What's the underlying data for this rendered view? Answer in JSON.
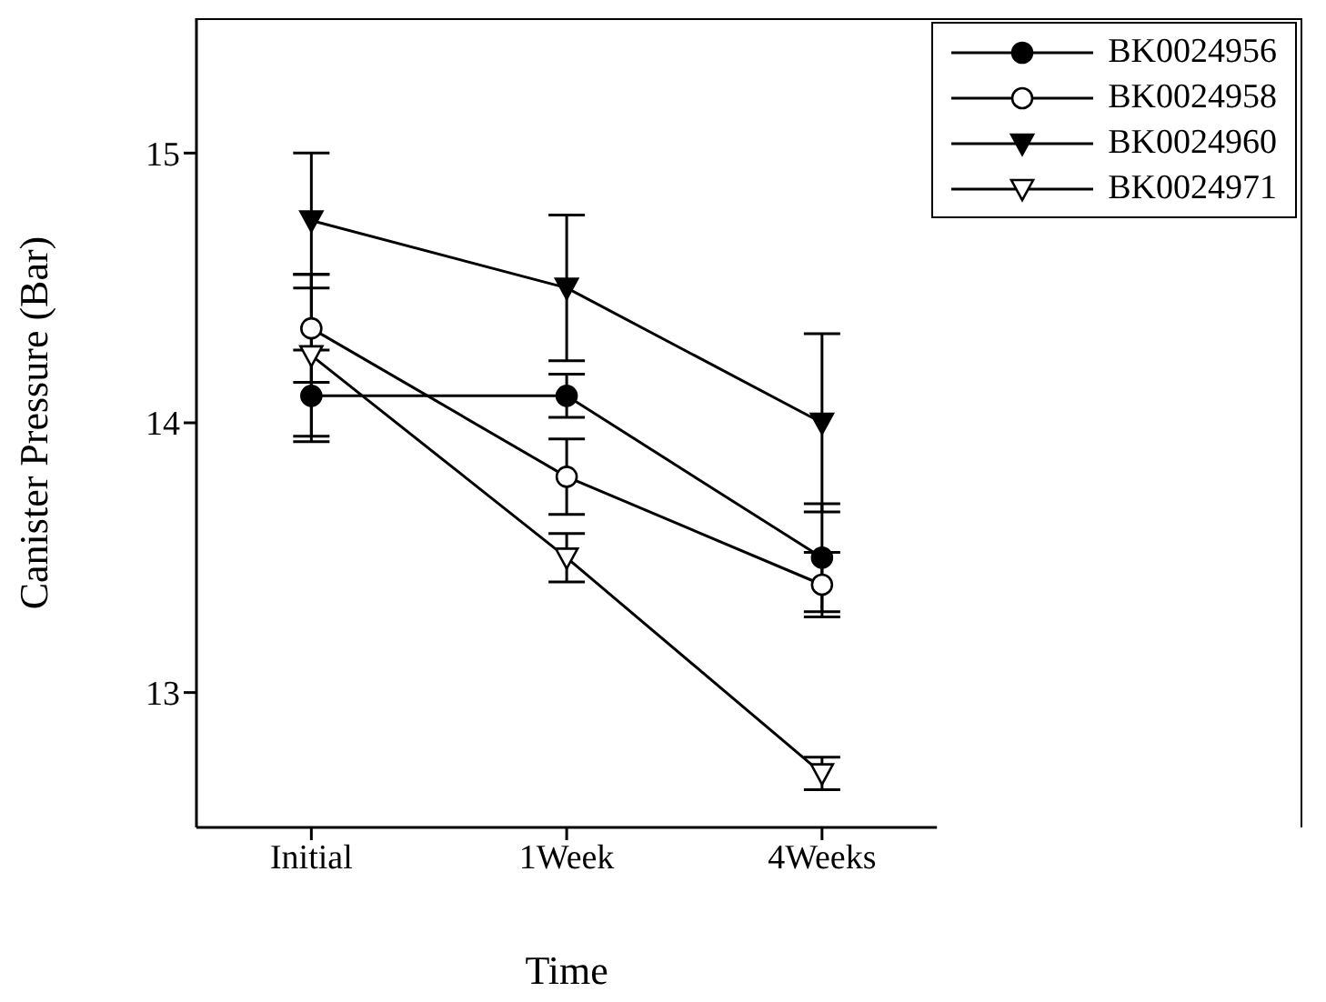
{
  "chart_data": {
    "type": "line",
    "xlabel": "Time",
    "ylabel": "Canister Pressure (Bar)",
    "categories": [
      "Initial",
      "1Week",
      "4Weeks"
    ],
    "series": [
      {
        "name": "BK0024956",
        "color": "#000000",
        "marker": "circle",
        "values": [
          14.1,
          14.1,
          13.5
        ],
        "errors": [
          0.17,
          0.08,
          0.2
        ]
      },
      {
        "name": "BK0024958",
        "color": "#000000",
        "marker": "circle-open",
        "values": [
          14.35,
          13.8,
          13.4
        ],
        "errors": [
          0.2,
          0.14,
          0.12
        ]
      },
      {
        "name": "BK0024960",
        "color": "#000000",
        "marker": "triangle",
        "values": [
          14.75,
          14.5,
          14.0
        ],
        "errors": [
          0.25,
          0.27,
          0.33
        ]
      },
      {
        "name": "BK0024971",
        "color": "#000000",
        "marker": "triangle-open",
        "values": [
          14.25,
          13.5,
          12.7
        ],
        "errors": [
          0.3,
          0.09,
          0.06
        ]
      }
    ],
    "ylim": [
      12.5,
      15.5
    ],
    "yticks": [
      13,
      14,
      15
    ],
    "legend": "top right",
    "line_style": "solid"
  }
}
